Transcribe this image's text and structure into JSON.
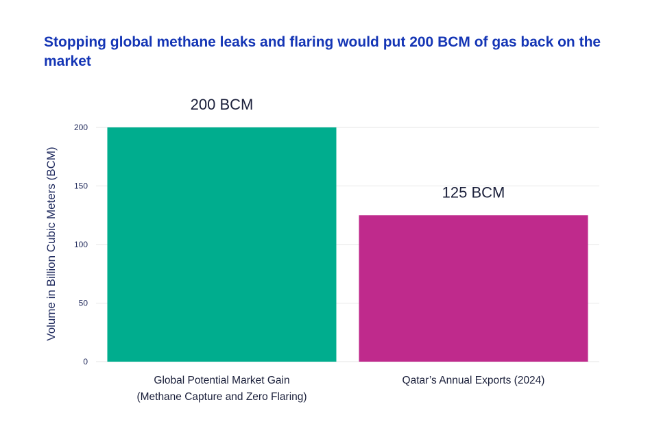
{
  "chart_data": {
    "type": "bar",
    "title": "Stopping global methane leaks and flaring would put 200 BCM of gas back on the market",
    "ylabel": "Volume in Billion Cubic Meters (BCM)",
    "xlabel": "",
    "ylim": [
      0,
      200
    ],
    "yticks": [
      0,
      50,
      100,
      150,
      200
    ],
    "grid": true,
    "legend": "none",
    "categories": [
      [
        "Global Potential Market Gain",
        "(Methane Capture and Zero Flaring)"
      ],
      [
        "Qatar’s Annual Exports (2024)"
      ]
    ],
    "values": [
      200,
      125
    ],
    "data_labels": [
      "200 BCM",
      "125 BCM"
    ],
    "colors": [
      "#00ad8e",
      "#bf2a8c"
    ]
  },
  "colors": {
    "title": "#1435b5",
    "grid": "#e6e6e6",
    "axis_text": "#222b5c"
  }
}
